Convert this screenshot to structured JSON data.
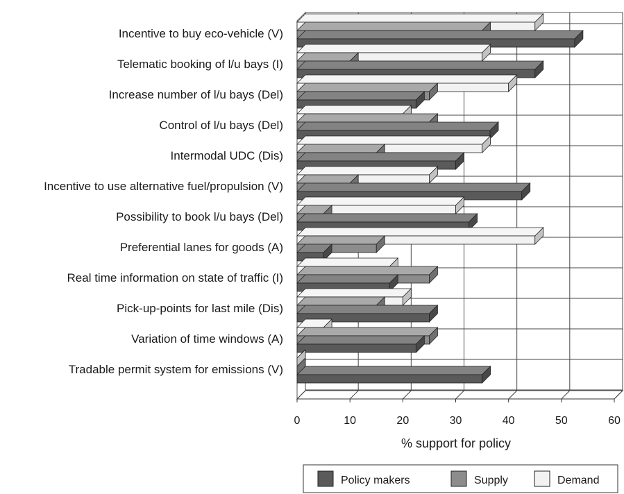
{
  "chart_data": {
    "type": "bar",
    "orientation": "horizontal",
    "style": "3d",
    "categories": [
      "Incentive to buy eco-vehicle (V)",
      "Telematic booking of l/u bays (I)",
      "Increase number of l/u bays (Del)",
      "Control of l/u bays (Del)",
      "Intermodal UDC (Dis)",
      "Incentive to use alternative fuel/propulsion (V)",
      "Possibility to book l/u bays (Del)",
      "Preferential lanes for goods (A)",
      "Real time information on state of traffic (I)",
      "Pick-up-points for last mile (Dis)",
      "Variation of time windows (A)",
      "Tradable permit system for emissions (V)"
    ],
    "series": [
      {
        "name": "Demand",
        "color": "#f2f2f2",
        "values": [
          45,
          35,
          40,
          20,
          35,
          25,
          30,
          45,
          17.5,
          20,
          5,
          0
        ]
      },
      {
        "name": "Supply",
        "color": "#8c8c8c",
        "values": [
          35,
          10,
          25,
          25,
          15,
          10,
          5,
          15,
          25,
          15,
          25,
          0
        ]
      },
      {
        "name": "Policy makers",
        "color": "#5a5a5a",
        "values": [
          52.5,
          45,
          22.5,
          36.5,
          30,
          42.5,
          32.5,
          5,
          17.5,
          25,
          22.5,
          35
        ]
      }
    ],
    "xlabel": "% support for policy",
    "xlim": [
      0,
      60
    ],
    "xticks": [
      0,
      10,
      20,
      30,
      40,
      50,
      60
    ],
    "grid": true,
    "legend": {
      "position": "bottom-right",
      "order": [
        "Policy makers",
        "Supply",
        "Demand"
      ]
    }
  }
}
